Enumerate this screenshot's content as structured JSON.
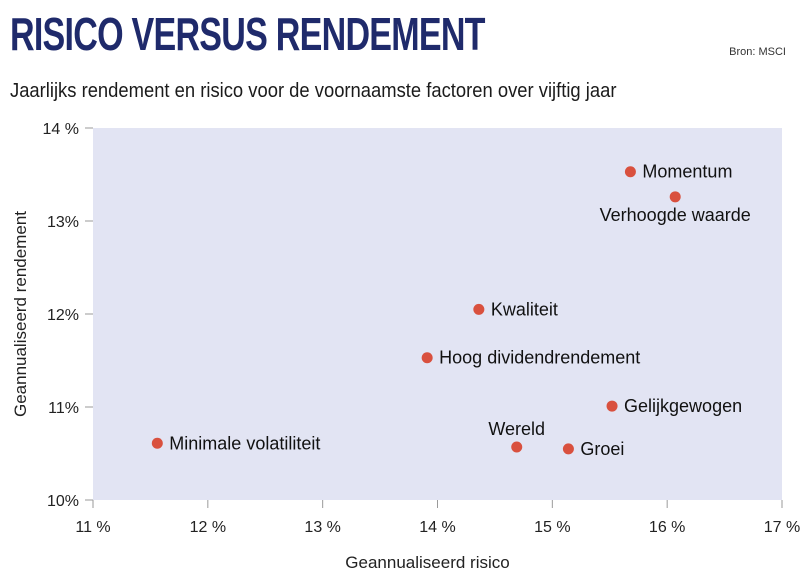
{
  "header": {
    "title": "RISICO VERSUS RENDEMENT",
    "source": "Bron: MSCI",
    "subtitle": "Jaarlijks rendement en risico voor de voornaamste factoren over vijftig jaar"
  },
  "chart_data": {
    "type": "scatter",
    "title": "RISICO VERSUS RENDEMENT",
    "subtitle": "Jaarlijks rendement en risico voor de voornaamste factoren over vijftig jaar",
    "xlabel": "Geannualiseerd risico",
    "ylabel": "Geannualiseerd rendement",
    "xlim": [
      11,
      17
    ],
    "ylim": [
      10,
      14
    ],
    "x_ticks": [
      11,
      12,
      13,
      14,
      15,
      16,
      17
    ],
    "y_ticks": [
      10,
      11,
      12,
      13,
      14
    ],
    "x_tick_labels": [
      "11 %",
      "12 %",
      "13 %",
      "14 %",
      "15 %",
      "16 %",
      "17 %"
    ],
    "y_tick_labels": [
      "10%",
      "11%",
      "12%",
      "13%",
      "14 %"
    ],
    "grid": false,
    "plot_background": "#e2e4f3",
    "point_color": "#d9503e",
    "points": [
      {
        "label": "Momentum",
        "x": 15.68,
        "y": 13.53,
        "label_pos": "right"
      },
      {
        "label": "Verhoogde waarde",
        "x": 16.07,
        "y": 13.26,
        "label_pos": "below"
      },
      {
        "label": "Kwaliteit",
        "x": 14.36,
        "y": 12.05,
        "label_pos": "right"
      },
      {
        "label": "Hoog dividendrendement",
        "x": 13.91,
        "y": 11.53,
        "label_pos": "right"
      },
      {
        "label": "Gelijkgewogen",
        "x": 15.52,
        "y": 11.01,
        "label_pos": "right"
      },
      {
        "label": "Minimale volatiliteit",
        "x": 11.56,
        "y": 10.61,
        "label_pos": "right"
      },
      {
        "label": "Wereld",
        "x": 14.69,
        "y": 10.57,
        "label_pos": "above"
      },
      {
        "label": "Groei",
        "x": 15.14,
        "y": 10.55,
        "label_pos": "right"
      }
    ]
  }
}
